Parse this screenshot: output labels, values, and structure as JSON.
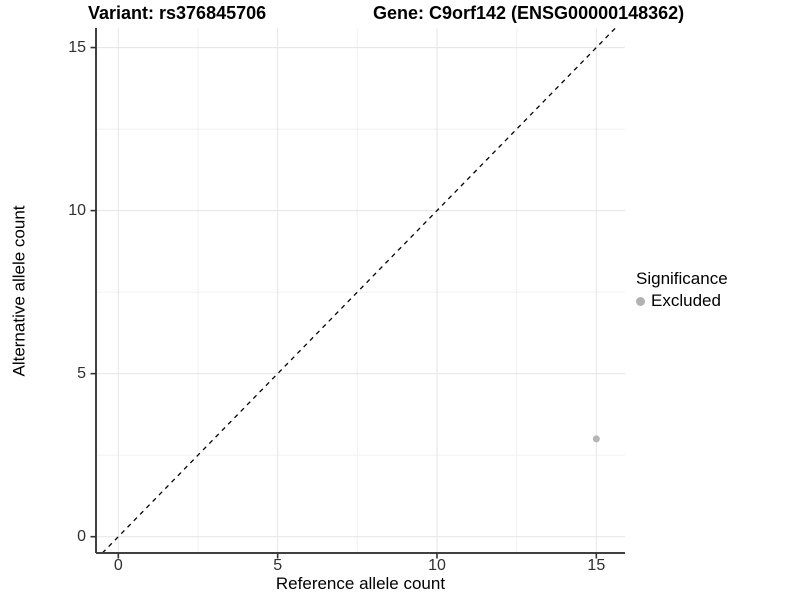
{
  "title": {
    "variant": "Variant: rs376845706",
    "gene": "Gene: C9orf142 (ENSG00000148362)"
  },
  "axes": {
    "x": {
      "label": "Reference allele count"
    },
    "y": {
      "label": "Alternative allele count"
    }
  },
  "legend": {
    "title": "Significance",
    "position": "right",
    "items": [
      {
        "label": "Excluded",
        "color": "#b2b2b2"
      }
    ]
  },
  "colors": {
    "background": "#ffffff",
    "grid_major": "#e5e5e5",
    "grid_minor": "#f1f1f1",
    "axis_line": "#404040",
    "tick_mark": "#333333",
    "tick_label": "#303030",
    "title_text": "#000000",
    "point": "#b5b5b5",
    "identity_line": "#000000"
  },
  "chart_data": {
    "type": "scatter",
    "title": "Variant: rs376845706    Gene: C9orf142 (ENSG00000148362)",
    "xlabel": "Reference allele count",
    "ylabel": "Alternative allele count",
    "xlim": [
      -0.7,
      15.9
    ],
    "ylim": [
      -0.5,
      15.6
    ],
    "xticks": [
      0,
      5,
      10,
      15
    ],
    "yticks": [
      0,
      5,
      10,
      15
    ],
    "grid": "major+minor",
    "legend_position": "right",
    "series": [
      {
        "name": "Excluded",
        "color": "#b5b5b5",
        "point_radius": 3.5,
        "points": [
          [
            15,
            3
          ]
        ]
      }
    ],
    "reference_line": {
      "kind": "identity y=x",
      "style": "dashed",
      "color": "#000000",
      "dash": [
        4.5,
        4.5
      ]
    }
  }
}
